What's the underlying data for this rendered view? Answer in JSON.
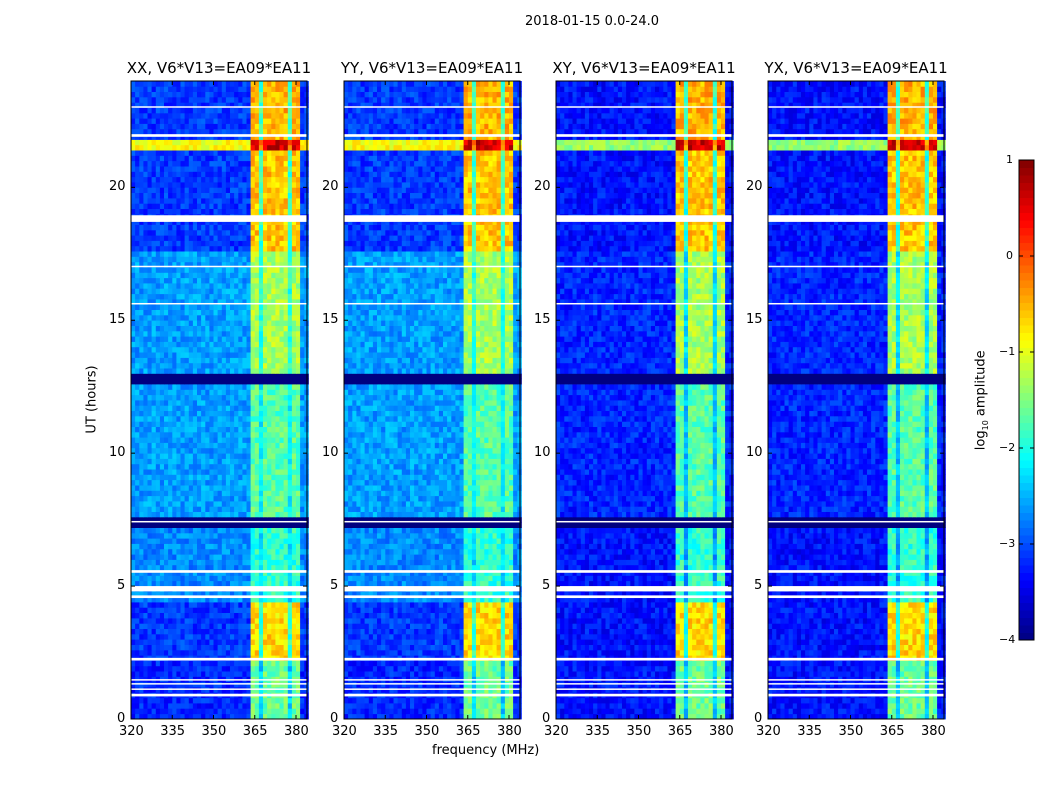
{
  "chart_data": {
    "type": "heatmap",
    "title": "2018-01-15 0.0-24.0",
    "xlabel": "frequency (MHz)",
    "ylabel": "UT (hours)",
    "xlim": [
      320,
      384
    ],
    "ylim": [
      0,
      24
    ],
    "xticks": [
      "320",
      "335",
      "350",
      "365",
      "380"
    ],
    "xtick_values": [
      320,
      335,
      350,
      365,
      380
    ],
    "yticks": [
      "0",
      "5",
      "10",
      "15",
      "20"
    ],
    "ytick_values": [
      0,
      5,
      10,
      15,
      20
    ],
    "panels": [
      {
        "title": "XX, V6*V13=EA09*EA11",
        "pol": "parallel"
      },
      {
        "title": "YY, V6*V13=EA09*EA11",
        "pol": "parallel"
      },
      {
        "title": "XY, V6*V13=EA09*EA11",
        "pol": "cross"
      },
      {
        "title": "YX, V6*V13=EA09*EA11",
        "pol": "cross"
      }
    ],
    "colorbar": {
      "label_prefix": "log",
      "label_sub": "10",
      "label_suffix": " amplitude",
      "range": [
        -4,
        1
      ],
      "ticks": [
        "1",
        "0",
        "−1",
        "−2",
        "−3",
        "−4"
      ],
      "tick_values": [
        1,
        0,
        -1,
        -2,
        -3,
        -4
      ],
      "colormap": "jet"
    },
    "rfi_bands_mhz": [
      [
        363,
        367
      ],
      [
        368,
        372
      ],
      [
        373,
        377
      ],
      [
        378,
        382
      ]
    ],
    "time_segments_hours": [
      {
        "range": [
          0,
          2.2
        ],
        "band_level": -1.6,
        "bg_parallel": -3.2,
        "bg_cross": -3.3
      },
      {
        "range": [
          2.2,
          4.5
        ],
        "band_level": -0.7,
        "bg_parallel": -3.1,
        "bg_cross": -3.3
      },
      {
        "range": [
          4.5,
          7.3
        ],
        "band_level": -1.9,
        "bg_parallel": -2.7,
        "bg_cross": -3.3
      },
      {
        "range": [
          7.3,
          7.6
        ],
        "band_level": -4.0,
        "bg_parallel": -4.0,
        "bg_cross": -4.0
      },
      {
        "range": [
          7.6,
          12.5
        ],
        "band_level": -1.7,
        "bg_parallel": -2.6,
        "bg_cross": -3.2
      },
      {
        "range": [
          12.5,
          13.0
        ],
        "band_level": -4.0,
        "bg_parallel": -4.0,
        "bg_cross": -4.0
      },
      {
        "range": [
          13.0,
          17.5
        ],
        "band_level": -1.3,
        "bg_parallel": -2.6,
        "bg_cross": -3.2
      },
      {
        "range": [
          17.5,
          21.3
        ],
        "band_level": -0.6,
        "bg_parallel": -3.1,
        "bg_cross": -3.3
      },
      {
        "range": [
          21.3,
          21.8
        ],
        "band_level": 0.6,
        "bg_parallel": -0.9,
        "bg_cross": -1.4
      },
      {
        "range": [
          21.8,
          24.0
        ],
        "band_level": -0.5,
        "bg_parallel": -3.1,
        "bg_cross": -3.3
      }
    ],
    "flagged_hours": [
      [
        0.85,
        0.95
      ],
      [
        1.1,
        1.15
      ],
      [
        1.3,
        1.35
      ],
      [
        1.45,
        1.5
      ],
      [
        2.2,
        2.3
      ],
      [
        4.55,
        4.65
      ],
      [
        4.8,
        5.0
      ],
      [
        5.5,
        5.6
      ],
      [
        7.4,
        7.45
      ],
      [
        15.6,
        15.65
      ],
      [
        17.0,
        17.05
      ],
      [
        18.7,
        18.95
      ],
      [
        21.9,
        22.0
      ],
      [
        23.0,
        23.05
      ]
    ]
  }
}
